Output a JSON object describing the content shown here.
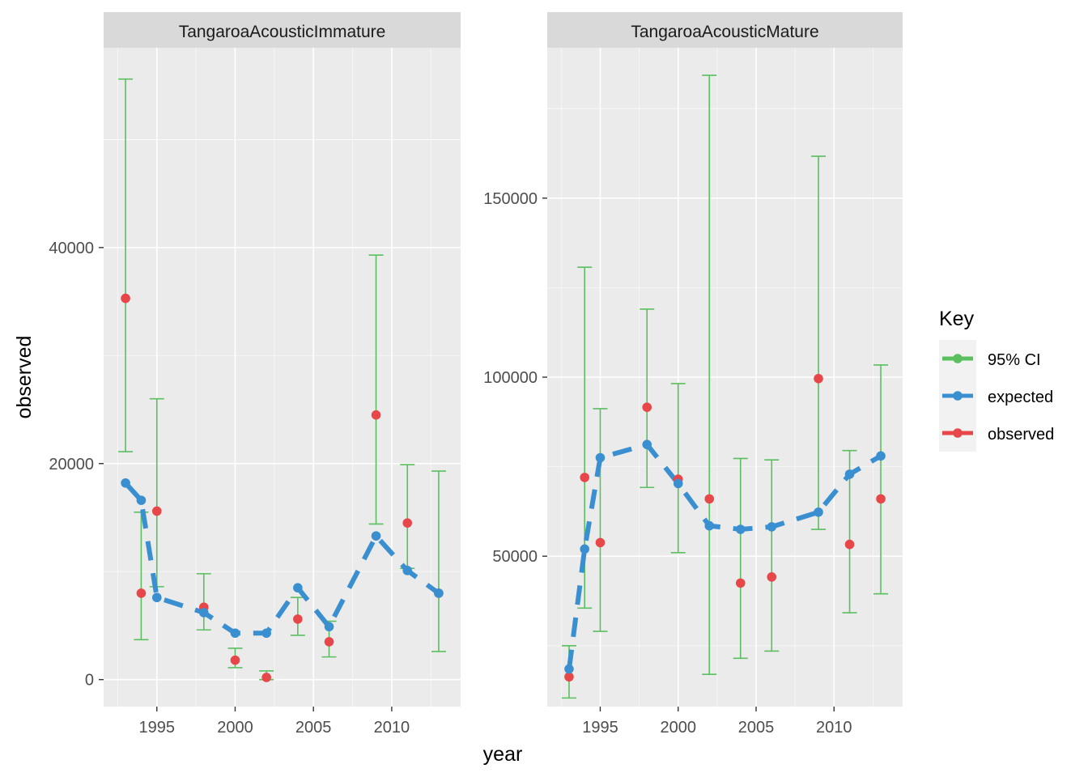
{
  "chart_data": {
    "type": "line",
    "xlabel": "year",
    "ylabel": "observed",
    "legend": {
      "title": "Key",
      "placement": "right",
      "items": [
        {
          "label": "95% CI",
          "color": "#5bbf5f"
        },
        {
          "label": "expected",
          "color": "#3a8fd1"
        },
        {
          "label": "observed",
          "color": "#e8474a"
        }
      ]
    },
    "colors": {
      "ci": "#5bbf5f",
      "expected": "#3a8fd1",
      "observed": "#e8474a",
      "panel_bg": "#ebebeb",
      "strip_bg": "#d9d9d9",
      "grid": "#ffffff"
    },
    "panels": [
      {
        "title": "TangaroaAcousticImmature",
        "xlim": [
          1991.6,
          2014.4
        ],
        "ylim": [
          -2500,
          58500
        ],
        "x_ticks": [
          1995,
          2000,
          2005,
          2010
        ],
        "y_ticks": [
          0,
          20000,
          40000
        ],
        "y_tick_labels": [
          "0",
          "20000",
          "40000"
        ],
        "expected": [
          {
            "x": 1993,
            "y": 18200
          },
          {
            "x": 1994,
            "y": 16600
          },
          {
            "x": 1995,
            "y": 7600
          },
          {
            "x": 1998,
            "y": 6200
          },
          {
            "x": 2000,
            "y": 4300
          },
          {
            "x": 2002,
            "y": 4300
          },
          {
            "x": 2004,
            "y": 8500
          },
          {
            "x": 2006,
            "y": 4900
          },
          {
            "x": 2009,
            "y": 13300
          },
          {
            "x": 2011,
            "y": 10100
          },
          {
            "x": 2013,
            "y": 8000
          }
        ],
        "observed": [
          {
            "x": 1993,
            "y": 35300,
            "lo": 21100,
            "hi": 55600
          },
          {
            "x": 1994,
            "y": 8000,
            "lo": 3700,
            "hi": 15500
          },
          {
            "x": 1995,
            "y": 15600,
            "lo": 8600,
            "hi": 26000
          },
          {
            "x": 1998,
            "y": 6700,
            "lo": 4600,
            "hi": 9800
          },
          {
            "x": 2000,
            "y": 1800,
            "lo": 1100,
            "hi": 2900
          },
          {
            "x": 2002,
            "y": 200,
            "lo": 0,
            "hi": 800
          },
          {
            "x": 2004,
            "y": 5600,
            "lo": 4100,
            "hi": 7600
          },
          {
            "x": 2006,
            "y": 3500,
            "lo": 2100,
            "hi": 5400
          },
          {
            "x": 2009,
            "y": 24500,
            "lo": 14400,
            "hi": 39300
          },
          {
            "x": 2011,
            "y": 14500,
            "lo": 10300,
            "hi": 19900
          },
          {
            "x": 2013,
            "y": 8000,
            "lo": 2600,
            "hi": 19300
          }
        ]
      },
      {
        "title": "TangaroaAcousticMature",
        "xlim": [
          1991.6,
          2014.4
        ],
        "ylim": [
          8000,
          192000
        ],
        "x_ticks": [
          1995,
          2000,
          2005,
          2010
        ],
        "y_ticks": [
          50000,
          100000,
          150000
        ],
        "y_tick_labels": [
          "50000",
          "100000",
          "150000"
        ],
        "expected": [
          {
            "x": 1993,
            "y": 18500
          },
          {
            "x": 1994,
            "y": 52000
          },
          {
            "x": 1995,
            "y": 77500
          },
          {
            "x": 1998,
            "y": 81200
          },
          {
            "x": 2000,
            "y": 70300
          },
          {
            "x": 2002,
            "y": 58500
          },
          {
            "x": 2004,
            "y": 57500
          },
          {
            "x": 2006,
            "y": 58200
          },
          {
            "x": 2009,
            "y": 62300
          },
          {
            "x": 2011,
            "y": 72900
          },
          {
            "x": 2013,
            "y": 78000
          }
        ],
        "observed": [
          {
            "x": 1993,
            "y": 16300,
            "lo": 10400,
            "hi": 25000
          },
          {
            "x": 1994,
            "y": 72000,
            "lo": 35500,
            "hi": 130700
          },
          {
            "x": 1995,
            "y": 53800,
            "lo": 29000,
            "hi": 91200
          },
          {
            "x": 1998,
            "y": 91600,
            "lo": 69200,
            "hi": 119000
          },
          {
            "x": 2000,
            "y": 71500,
            "lo": 51000,
            "hi": 98200
          },
          {
            "x": 2002,
            "y": 66000,
            "lo": 17000,
            "hi": 184300
          },
          {
            "x": 2004,
            "y": 42500,
            "lo": 21500,
            "hi": 77300
          },
          {
            "x": 2006,
            "y": 44200,
            "lo": 23500,
            "hi": 76900
          },
          {
            "x": 2009,
            "y": 99600,
            "lo": 57500,
            "hi": 161700
          },
          {
            "x": 2011,
            "y": 53300,
            "lo": 34200,
            "hi": 79500
          },
          {
            "x": 2013,
            "y": 66000,
            "lo": 39500,
            "hi": 103400
          }
        ]
      }
    ]
  }
}
